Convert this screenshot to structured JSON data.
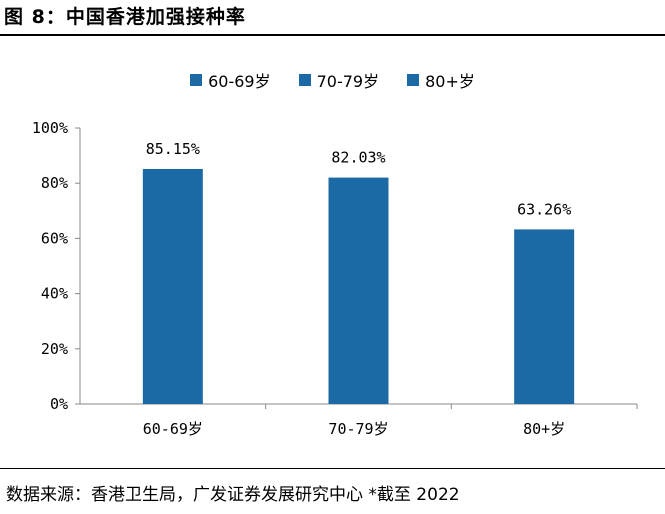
{
  "header": {
    "title": "图 8：中国香港加强接种率"
  },
  "footer": {
    "source": "数据来源：香港卫生局，广发证券发展研究中心 *截至 2022"
  },
  "colors": {
    "bar": "#1b6aa5",
    "axis": "#888888"
  },
  "chart_data": {
    "type": "bar",
    "categories": [
      "60-69岁",
      "70-79岁",
      "80+岁"
    ],
    "series": [
      {
        "name": "60-69岁",
        "values": [
          85.15,
          null,
          null
        ]
      },
      {
        "name": "70-79岁",
        "values": [
          null,
          82.03,
          null
        ]
      },
      {
        "name": "80+岁",
        "values": [
          null,
          null,
          63.26
        ]
      }
    ],
    "values": [
      85.15,
      82.03,
      63.26
    ],
    "data_labels": [
      "85.15%",
      "82.03%",
      "63.26%"
    ],
    "y_ticks": [
      "0%",
      "20%",
      "40%",
      "60%",
      "80%",
      "100%"
    ],
    "ylim": [
      0,
      100
    ],
    "title": "",
    "xlabel": "",
    "ylabel": "",
    "legend": {
      "position": "top",
      "entries": [
        "60-69岁",
        "70-79岁",
        "80+岁"
      ]
    },
    "grid": false
  }
}
